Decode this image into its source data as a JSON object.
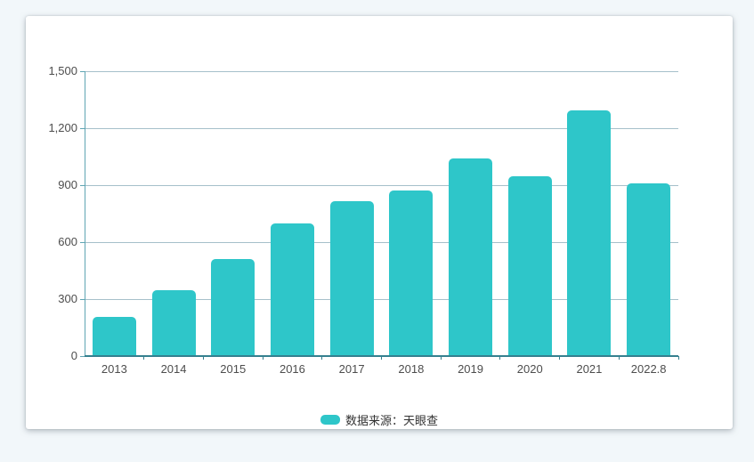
{
  "page": {
    "background_color": "#f2f7fa"
  },
  "card": {
    "background_color": "#ffffff"
  },
  "chart_data": {
    "type": "bar",
    "categories": [
      "2013",
      "2014",
      "2015",
      "2016",
      "2017",
      "2018",
      "2019",
      "2020",
      "2021",
      "2022.8"
    ],
    "values": [
      208,
      345,
      512,
      700,
      818,
      873,
      1040,
      945,
      1294,
      911
    ],
    "title": "",
    "xlabel": "",
    "ylabel": "",
    "ylim": [
      0,
      1500
    ],
    "yticks": [
      0,
      300,
      600,
      900,
      1200,
      1500
    ],
    "ytick_labels": [
      "0",
      "300",
      "600",
      "900",
      "1,200",
      "1,500"
    ],
    "grid": true,
    "legend_position": "bottom",
    "bar_color": "#2ec6c9",
    "grid_color": "#a6c0ca",
    "y_axis_color": "#5fa5b3",
    "x_axis_color": "#35808f",
    "tick_label_color": "#4d4d4d"
  },
  "legend": {
    "label": "数据来源：天眼查",
    "swatch_color": "#2ec6c9"
  }
}
